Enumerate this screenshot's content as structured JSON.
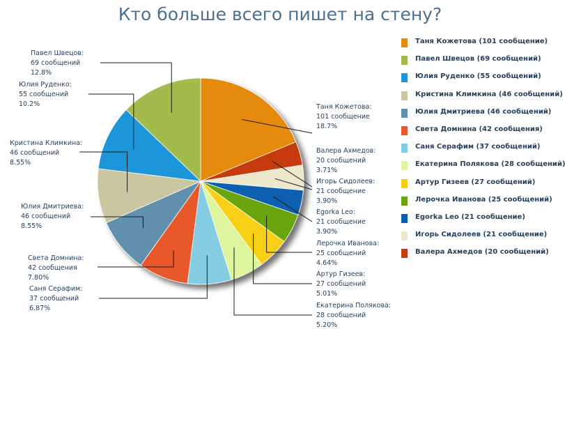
{
  "title": "Кто больше всего пишет на стену?",
  "chart_data": {
    "type": "pie",
    "title": "Кто больше всего пишет на стену?",
    "legend_position": "right",
    "slices": [
      {
        "name": "Таня Кожетова",
        "value": 101,
        "label": "Таня Кожетова:",
        "count_text": "101 сообщение",
        "percent_text": "18.7%",
        "legend": "Таня Кожетова (101 сообщение)",
        "color": "#e58a0d"
      },
      {
        "name": "Валера Ахмедов",
        "value": 20,
        "label": "Валера Ахмедов:",
        "count_text": "20 сообщений",
        "percent_text": "3.71%",
        "legend": "Валера Ахмедов (20 сообщений)",
        "color": "#c63a0c"
      },
      {
        "name": "Игорь Сидолеев",
        "value": 21,
        "label": "Игорь Сидолеев:",
        "count_text": "21 сообщение",
        "percent_text": "3.90%",
        "legend": "Игорь Сидолеев (21 сообщение)",
        "color": "#ede8cc"
      },
      {
        "name": "Egorka Leo",
        "value": 21,
        "label": "Egorka Leo:",
        "count_text": "21 сообщение",
        "percent_text": "3.90%",
        "legend": "Egorka Leo (21 сообщение)",
        "color": "#0b5fb0"
      },
      {
        "name": "Лерочка Иванова",
        "value": 25,
        "label": "Лерочка Иванова:",
        "count_text": "25 сообщений",
        "percent_text": "4.64%",
        "legend": "Лерочка Иванова (25 сообщений)",
        "color": "#6aa50e"
      },
      {
        "name": "Артур Гизеев",
        "value": 27,
        "label": "Артур Гизеев:",
        "count_text": "27 сообщений",
        "percent_text": "5.01%",
        "legend": "Артур Гизеев (27 сообщений)",
        "color": "#f6cf15"
      },
      {
        "name": "Екатерина Полякова",
        "value": 28,
        "label": "Екатерина Полякова:",
        "count_text": "28 сообщений",
        "percent_text": "5.20%",
        "legend": "Екатерина Полякова (28 сообщений)",
        "color": "#ddf59c"
      },
      {
        "name": "Саня Серафим",
        "value": 37,
        "label": "Саня Серафим:",
        "count_text": "37 сообщений",
        "percent_text": "6.87%",
        "legend": "Саня Серафим (37 сообщений)",
        "color": "#84cde3"
      },
      {
        "name": "Света Домнина",
        "value": 42,
        "label": "Света Домнина:",
        "count_text": "42 сообщения",
        "percent_text": "7.80%",
        "legend": "Света Домнина (42 сообщения)",
        "color": "#e9582a"
      },
      {
        "name": "Юлия Дмитриева",
        "value": 46,
        "label": "Юлия Дмитриева:",
        "count_text": "46 сообщений",
        "percent_text": "8.55%",
        "legend": "Юлия Дмитриева (46 сообщений)",
        "color": "#6090ad"
      },
      {
        "name": "Кристина Климкина",
        "value": 46,
        "label": "Кристина Климкина:",
        "count_text": "46 сообщений",
        "percent_text": "8.55%",
        "legend": "Кристина Климкина (46 сообщений)",
        "color": "#cbc6a2"
      },
      {
        "name": "Юлия Руденко",
        "value": 55,
        "label": "Юлия Руденко:",
        "count_text": "55 сообщений",
        "percent_text": "10.2%",
        "legend": "Юлия Руденко (55 сообщений)",
        "color": "#1e96d9"
      },
      {
        "name": "Павел Швецов",
        "value": 69,
        "label": "Павел Швецов:",
        "count_text": "69 сообщений",
        "percent_text": "12.8%",
        "legend": "Павел Швецов (69 сообщений)",
        "color": "#a3bb4d"
      }
    ]
  }
}
